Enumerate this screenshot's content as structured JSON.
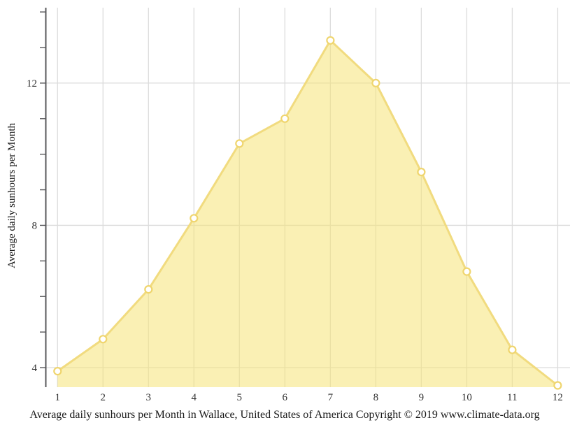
{
  "chart_data": {
    "type": "area",
    "title": "",
    "ylabel": "Average daily sunhours per Month",
    "caption": "Average daily sunhours per Month in Wallace, United States of America Copyright © 2019 www.climate-data.org",
    "x": [
      1,
      2,
      3,
      4,
      5,
      6,
      7,
      8,
      9,
      10,
      11,
      12
    ],
    "series": [
      {
        "name": "Average daily sunhours",
        "values": [
          3.9,
          4.8,
          6.2,
          8.2,
          10.3,
          11.0,
          13.2,
          12.0,
          9.5,
          6.7,
          4.5,
          3.5
        ]
      }
    ],
    "y_ticks_labeled": [
      4,
      8,
      12
    ],
    "y_ticks_minor": [
      4,
      5,
      6,
      7,
      8,
      9,
      10,
      11,
      12,
      13,
      14
    ],
    "xlim": [
      0.75,
      12.27
    ],
    "ylim": [
      3.45,
      14.12
    ],
    "grid": {
      "horizontal_at": [
        4,
        8,
        12
      ],
      "vertical_at_each_month": true
    },
    "legend_position": "none",
    "colors": {
      "line": "#F1DB7F",
      "area_fill": "#F5E376",
      "area_opacity": 0.55,
      "marker_fill": "#FFFFFF",
      "marker_stroke": "#EFD56E",
      "grid": "#DCDCDC",
      "axis": "#58585B",
      "tick_text": "#333333",
      "text": "#1A1A1A",
      "background": "#FFFFFF"
    }
  }
}
